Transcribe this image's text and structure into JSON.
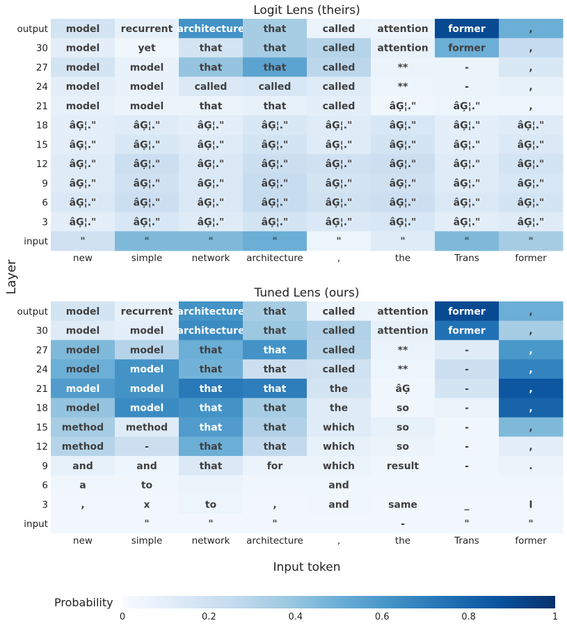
{
  "chart_data": [
    {
      "type": "heatmap",
      "title": "Logit Lens (theirs)",
      "x_tokens": [
        "new",
        "simple",
        "network",
        "architecture",
        ",",
        "the",
        "Trans",
        "former"
      ],
      "layers": [
        "output",
        "30",
        "27",
        "24",
        "21",
        "18",
        "15",
        "12",
        "9",
        "6",
        "3",
        "input"
      ],
      "cells": [
        [
          "model",
          "recurrent",
          "architecture",
          "that",
          "called",
          "attention",
          "former",
          ","
        ],
        [
          "model",
          "yet",
          "that",
          "that",
          "called",
          "attention",
          "former",
          ","
        ],
        [
          "model",
          "model",
          "that",
          "that",
          "called",
          "**",
          "-",
          ","
        ],
        [
          "model",
          "model",
          "called",
          "called",
          "called",
          "**",
          "-",
          ","
        ],
        [
          "model",
          "model",
          "that",
          "that",
          "called",
          "âĢ¦.\"",
          "âĢ¦.\"",
          ","
        ],
        [
          "âĢ¦.\"",
          "âĢ¦.\"",
          "âĢ¦.\"",
          "âĢ¦.\"",
          "âĢ¦.\"",
          "âĢ¦.\"",
          "âĢ¦.\"",
          "âĢ¦.\""
        ],
        [
          "âĢ¦.\"",
          "âĢ¦.\"",
          "âĢ¦.\"",
          "âĢ¦.\"",
          "âĢ¦.\"",
          "âĢ¦.\"",
          "âĢ¦.\"",
          "âĢ¦.\""
        ],
        [
          "âĢ¦.\"",
          "âĢ¦.\"",
          "âĢ¦.\"",
          "âĢ¦.\"",
          "âĢ¦.\"",
          "âĢ¦.\"",
          "âĢ¦.\"",
          "âĢ¦.\""
        ],
        [
          "âĢ¦.\"",
          "âĢ¦.\"",
          "âĢ¦.\"",
          "âĢ¦.\"",
          "âĢ¦.\"",
          "âĢ¦.\"",
          "âĢ¦.\"",
          "âĢ¦.\""
        ],
        [
          "âĢ¦.\"",
          "âĢ¦.\"",
          "âĢ¦.\"",
          "âĢ¦.\"",
          "âĢ¦.\"",
          "âĢ¦.\"",
          "âĢ¦.\"",
          "âĢ¦.\""
        ],
        [
          "âĢ¦.\"",
          "âĢ¦.\"",
          "âĢ¦.\"",
          "âĢ¦.\"",
          "âĢ¦.\"",
          "âĢ¦.\"",
          "âĢ¦.\"",
          "âĢ¦.\""
        ],
        [
          "\"",
          "\"",
          "\"",
          "\"",
          "\"",
          "\"",
          "\"",
          "\""
        ]
      ],
      "probabilities": [
        [
          0.18,
          0.08,
          0.62,
          0.35,
          0.06,
          0.05,
          0.9,
          0.5
        ],
        [
          0.1,
          0.04,
          0.18,
          0.35,
          0.3,
          0.07,
          0.5,
          0.25
        ],
        [
          0.18,
          0.07,
          0.4,
          0.55,
          0.28,
          0.06,
          0.06,
          0.15
        ],
        [
          0.1,
          0.07,
          0.14,
          0.16,
          0.12,
          0.05,
          0.06,
          0.08
        ],
        [
          0.08,
          0.06,
          0.06,
          0.08,
          0.1,
          0.04,
          0.05,
          0.05
        ],
        [
          0.1,
          0.12,
          0.1,
          0.15,
          0.12,
          0.16,
          0.1,
          0.12
        ],
        [
          0.1,
          0.15,
          0.12,
          0.18,
          0.12,
          0.18,
          0.1,
          0.14
        ],
        [
          0.12,
          0.22,
          0.14,
          0.22,
          0.2,
          0.22,
          0.12,
          0.18
        ],
        [
          0.12,
          0.2,
          0.14,
          0.24,
          0.18,
          0.2,
          0.12,
          0.16
        ],
        [
          0.14,
          0.22,
          0.14,
          0.24,
          0.2,
          0.22,
          0.14,
          0.18
        ],
        [
          0.1,
          0.16,
          0.12,
          0.18,
          0.14,
          0.16,
          0.1,
          0.12
        ],
        [
          0.2,
          0.45,
          0.45,
          0.5,
          0.05,
          0.12,
          0.45,
          0.35
        ]
      ],
      "ylabel": "Layer"
    },
    {
      "type": "heatmap",
      "title": "Tuned Lens (ours)",
      "x_tokens": [
        "new",
        "simple",
        "network",
        "architecture",
        ",",
        "the",
        "Trans",
        "former"
      ],
      "layers": [
        "output",
        "30",
        "27",
        "24",
        "21",
        "18",
        "15",
        "12",
        "9",
        "6",
        "3",
        "input"
      ],
      "cells": [
        [
          "model",
          "recurrent",
          "architecture",
          "that",
          "called",
          "attention",
          "former",
          ","
        ],
        [
          "model",
          "model",
          "architecture",
          "that",
          "called",
          "attention",
          "former",
          ","
        ],
        [
          "model",
          "model",
          "that",
          "that",
          "called",
          "**",
          "-",
          ","
        ],
        [
          "model",
          "model",
          "that",
          "that",
          "called",
          "**",
          "-",
          ","
        ],
        [
          "model",
          "model",
          "that",
          "that",
          "the",
          "âĢ",
          "-",
          ","
        ],
        [
          "model",
          "model",
          "that",
          "that",
          "the",
          "so",
          "-",
          ","
        ],
        [
          "method",
          "method",
          "that",
          "that",
          "which",
          "so",
          "-",
          ","
        ],
        [
          "method",
          "-",
          "that",
          "that",
          "which",
          "so",
          "-",
          ","
        ],
        [
          "and",
          "and",
          "that",
          "for",
          "which",
          "result",
          "-",
          "."
        ],
        [
          "a",
          "to",
          "",
          "",
          "and",
          "",
          "",
          ""
        ],
        [
          ",",
          "x",
          "to",
          ",",
          "and",
          "same",
          "_",
          "I"
        ],
        [
          "",
          "\"",
          "\"",
          "\"",
          "",
          "-",
          "\"",
          "\""
        ]
      ],
      "probabilities": [
        [
          0.18,
          0.08,
          0.62,
          0.35,
          0.06,
          0.05,
          0.9,
          0.5
        ],
        [
          0.12,
          0.1,
          0.65,
          0.38,
          0.32,
          0.08,
          0.75,
          0.35
        ],
        [
          0.45,
          0.3,
          0.5,
          0.62,
          0.3,
          0.06,
          0.12,
          0.6
        ],
        [
          0.5,
          0.62,
          0.48,
          0.22,
          0.2,
          0.05,
          0.22,
          0.68
        ],
        [
          0.58,
          0.62,
          0.72,
          0.7,
          0.18,
          0.04,
          0.18,
          0.85
        ],
        [
          0.4,
          0.65,
          0.62,
          0.35,
          0.12,
          0.04,
          0.06,
          0.8
        ],
        [
          0.35,
          0.12,
          0.58,
          0.32,
          0.12,
          0.08,
          0.04,
          0.45
        ],
        [
          0.3,
          0.22,
          0.5,
          0.26,
          0.08,
          0.06,
          0.04,
          0.1
        ],
        [
          0.08,
          0.05,
          0.14,
          0.06,
          0.06,
          0.04,
          0.04,
          0.06
        ],
        [
          0.04,
          0.04,
          0.06,
          0.04,
          0.04,
          0.04,
          0.04,
          0.04
        ],
        [
          0.03,
          0.03,
          0.05,
          0.03,
          0.04,
          0.03,
          0.03,
          0.03
        ],
        [
          0.03,
          0.03,
          0.03,
          0.03,
          0.03,
          0.03,
          0.03,
          0.03
        ]
      ],
      "ylabel": "Layer"
    }
  ],
  "xlabel": "Input token",
  "colorbar": {
    "label": "Probability",
    "ticks": [
      "0",
      "0.2",
      "0.4",
      "0.6",
      "0.8",
      "1"
    ],
    "range": [
      0,
      1
    ],
    "colors": [
      "#f7fbff",
      "#deebf7",
      "#c6dbef",
      "#9ecae1",
      "#6baed6",
      "#4292c6",
      "#2171b5",
      "#08519c",
      "#08306b"
    ]
  }
}
